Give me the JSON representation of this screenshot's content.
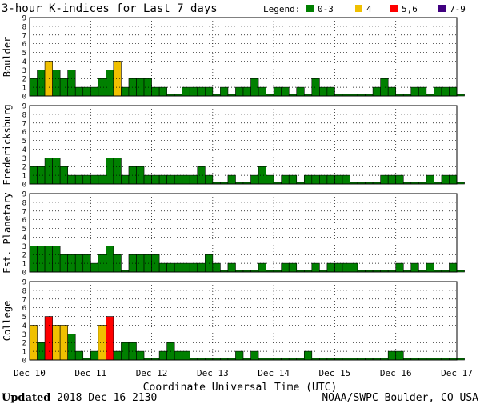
{
  "title": "3-hour K-indices for Last 7 days",
  "legend": {
    "label": "Legend:",
    "items": [
      {
        "label": "0-3",
        "color": "#008000"
      },
      {
        "label": "4",
        "color": "#f0c000"
      },
      {
        "label": "5,6",
        "color": "#ff0000"
      },
      {
        "label": "7-9",
        "color": "#400080"
      }
    ]
  },
  "footer": {
    "updated_label": "Updated",
    "updated_value": "2018 Dec 16 2130",
    "source": "NOAA/SWPC Boulder, CO USA"
  },
  "chart_data": {
    "type": "bar",
    "xlabel": "Coordinate Universal Time (UTC)",
    "x_ticks": [
      "Dec 10",
      "Dec 11",
      "Dec 12",
      "Dec 13",
      "Dec 14",
      "Dec 15",
      "Dec 16",
      "Dec 17"
    ],
    "ylim": [
      0,
      9
    ],
    "y_ticks": [
      0,
      1,
      2,
      3,
      4,
      5,
      6,
      7,
      8,
      9
    ],
    "bins_per_day": 8,
    "grid": true,
    "color_scale": [
      {
        "range": "0-3",
        "color": "#008000"
      },
      {
        "range": "4",
        "color": "#f0c000"
      },
      {
        "range": "5,6",
        "color": "#ff0000"
      },
      {
        "range": "7-9",
        "color": "#400080"
      }
    ],
    "panels": [
      {
        "name": "Boulder",
        "values": [
          2,
          3,
          4,
          3,
          2,
          3,
          1,
          1,
          1,
          2,
          3,
          4,
          1,
          2,
          2,
          2,
          1,
          1,
          0,
          0,
          1,
          1,
          1,
          1,
          0,
          1,
          0,
          1,
          1,
          2,
          1,
          0,
          1,
          1,
          0,
          1,
          0,
          2,
          1,
          1,
          0,
          0,
          0,
          0,
          0,
          1,
          2,
          1,
          0,
          0,
          1,
          1,
          0,
          1,
          1,
          1,
          0
        ]
      },
      {
        "name": "Fredericksburg",
        "values": [
          2,
          2,
          3,
          3,
          2,
          1,
          1,
          1,
          1,
          1,
          3,
          3,
          1,
          2,
          2,
          1,
          1,
          1,
          1,
          1,
          1,
          1,
          2,
          1,
          0,
          0,
          1,
          0,
          0,
          1,
          2,
          1,
          0,
          1,
          1,
          0,
          1,
          1,
          1,
          1,
          1,
          1,
          0,
          0,
          0,
          0,
          1,
          1,
          1,
          0,
          0,
          0,
          1,
          0,
          1,
          1,
          0
        ]
      },
      {
        "name": "Est. Planetary",
        "values": [
          3,
          3,
          3,
          3,
          2,
          2,
          2,
          2,
          1,
          2,
          3,
          2,
          0,
          2,
          2,
          2,
          2,
          1,
          1,
          1,
          1,
          1,
          1,
          2,
          1,
          0,
          1,
          0,
          0,
          0,
          1,
          0,
          0,
          1,
          1,
          0,
          0,
          1,
          0,
          1,
          1,
          1,
          1,
          0,
          0,
          0,
          0,
          0,
          1,
          0,
          1,
          0,
          1,
          0,
          0,
          1,
          0
        ]
      },
      {
        "name": "College",
        "values": [
          4,
          2,
          5,
          4,
          4,
          3,
          1,
          0,
          1,
          4,
          5,
          1,
          2,
          2,
          1,
          0,
          0,
          1,
          2,
          1,
          1,
          0,
          0,
          0,
          0,
          0,
          0,
          1,
          0,
          1,
          0,
          0,
          0,
          0,
          0,
          0,
          1,
          0,
          0,
          0,
          0,
          0,
          0,
          0,
          0,
          0,
          0,
          1,
          1,
          0,
          0,
          0,
          0,
          0,
          0,
          0,
          0
        ]
      }
    ]
  }
}
